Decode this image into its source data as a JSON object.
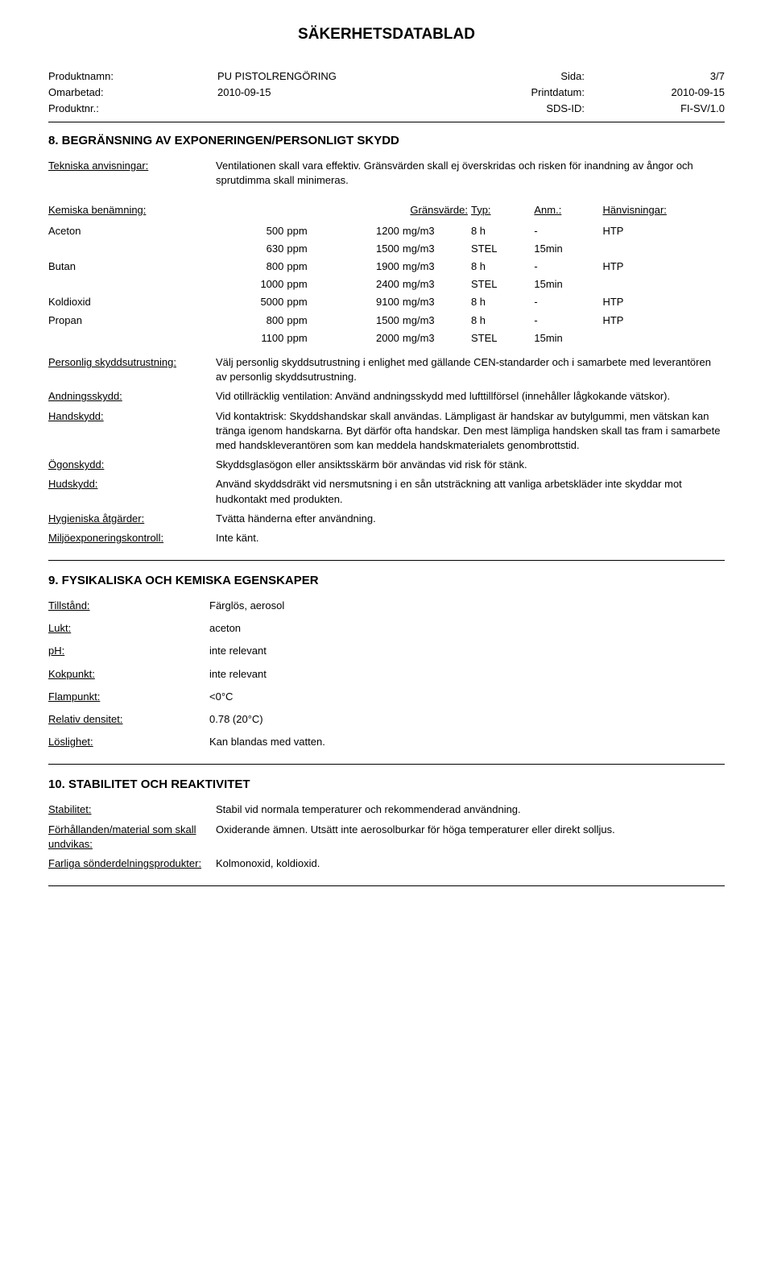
{
  "doc": {
    "title": "SÄKERHETSDATABLAD",
    "meta": {
      "prod_name_label": "Produktnamn:",
      "prod_name": "PU PISTOLRENGÖRING",
      "page_label": "Sida:",
      "page": "3/7",
      "rev_label": "Omarbetad:",
      "rev": "2010-09-15",
      "print_label": "Printdatum:",
      "print": "2010-09-15",
      "prodnr_label": "Produktnr.:",
      "prodnr": "",
      "sds_label": "SDS-ID:",
      "sds": "FI-SV/1.0"
    }
  },
  "s8": {
    "heading": "8. BEGRÄNSNING AV EXPONERINGEN/PERSONLIGT SKYDD",
    "tech_label": "Tekniska anvisningar:",
    "tech_text": "Ventilationen skall vara effektiv. Gränsvärden skall ej överskridas och risken för inandning av ångor och sprutdimma skall minimeras.",
    "limits_header": {
      "sub": "Kemiska benämning:",
      "lim": "Gränsvärde:",
      "typ": "Typ:",
      "anm": "Anm.:",
      "ref": "Hänvisningar:"
    },
    "limits": [
      {
        "sub": "Aceton",
        "v1": "500",
        "u1": "ppm",
        "v2": "1200",
        "u2": "mg/m3",
        "typ": "8 h",
        "anm": "-",
        "ref": "HTP"
      },
      {
        "sub": "",
        "v1": "630",
        "u1": "ppm",
        "v2": "1500",
        "u2": "mg/m3",
        "typ": "STEL",
        "anm": "15min",
        "ref": ""
      },
      {
        "sub": "Butan",
        "v1": "800",
        "u1": "ppm",
        "v2": "1900",
        "u2": "mg/m3",
        "typ": "8 h",
        "anm": "-",
        "ref": "HTP"
      },
      {
        "sub": "",
        "v1": "1000",
        "u1": "ppm",
        "v2": "2400",
        "u2": "mg/m3",
        "typ": "STEL",
        "anm": "15min",
        "ref": ""
      },
      {
        "sub": "Koldioxid",
        "v1": "5000",
        "u1": "ppm",
        "v2": "9100",
        "u2": "mg/m3",
        "typ": "8 h",
        "anm": "-",
        "ref": "HTP"
      },
      {
        "sub": "Propan",
        "v1": "800",
        "u1": "ppm",
        "v2": "1500",
        "u2": "mg/m3",
        "typ": "8 h",
        "anm": "-",
        "ref": "HTP"
      },
      {
        "sub": "",
        "v1": "1100",
        "u1": "ppm",
        "v2": "2000",
        "u2": "mg/m3",
        "typ": "STEL",
        "anm": "15min",
        "ref": ""
      }
    ],
    "personal_label": "Personlig skyddsutrustning:",
    "personal_text": "Välj personlig skyddsutrustning i enlighet med gällande CEN-standarder och i samarbete med leverantören av personlig skyddsutrustning.",
    "resp_label": "Andningsskydd:",
    "resp_text": "Vid otillräcklig ventilation: Använd andningsskydd med lufttillförsel (innehåller lågkokande vätskor).",
    "hand_label": "Handskydd:",
    "hand_text": "Vid kontaktrisk: Skyddshandskar skall användas. Lämpligast är handskar av butylgummi, men vätskan kan tränga igenom handskarna. Byt därför ofta handskar. Den mest lämpliga handsken skall tas fram i samarbete med handskleverantören som kan meddela handskmaterialets genombrottstid.",
    "eye_label": "Ögonskydd:",
    "eye_text": "Skyddsglasögon eller ansiktsskärm bör användas vid risk för stänk.",
    "skin_label": "Hudskydd:",
    "skin_text": "Använd skyddsdräkt vid nersmutsning i en sån utsträckning att vanliga arbetskläder inte skyddar mot hudkontakt med produkten.",
    "hyg_label": "Hygieniska åtgärder:",
    "hyg_text": "Tvätta händerna efter användning.",
    "env_label": "Miljöexponeringskontroll:",
    "env_text": "Inte känt."
  },
  "s9": {
    "heading": "9. FYSIKALISKA OCH KEMISKA EGENSKAPER",
    "props": {
      "state_l": "Tillstånd:",
      "state_v": "Färglös, aerosol",
      "odor_l": "Lukt:",
      "odor_v": "aceton",
      "ph_l": "pH:",
      "ph_v": "inte relevant",
      "boil_l": "Kokpunkt:",
      "boil_v": "inte relevant",
      "flash_l": "Flampunkt:",
      "flash_v": "<0°C",
      "dens_l": "Relativ densitet:",
      "dens_v": "0.78 (20°C)",
      "sol_l": "Löslighet:",
      "sol_v": "Kan blandas med vatten."
    }
  },
  "s10": {
    "heading": "10. STABILITET OCH REAKTIVITET",
    "stab_label": "Stabilitet:",
    "stab_text": "Stabil vid normala temperaturer och rekommenderad användning.",
    "avoid_label": "Förhållanden/material som skall undvikas:",
    "avoid_text": "Oxiderande ämnen. Utsätt inte aerosolburkar för höga temperaturer eller direkt solljus.",
    "decomp_label": "Farliga sönderdelningsprodukter:",
    "decomp_text": "Kolmonoxid, koldioxid."
  }
}
